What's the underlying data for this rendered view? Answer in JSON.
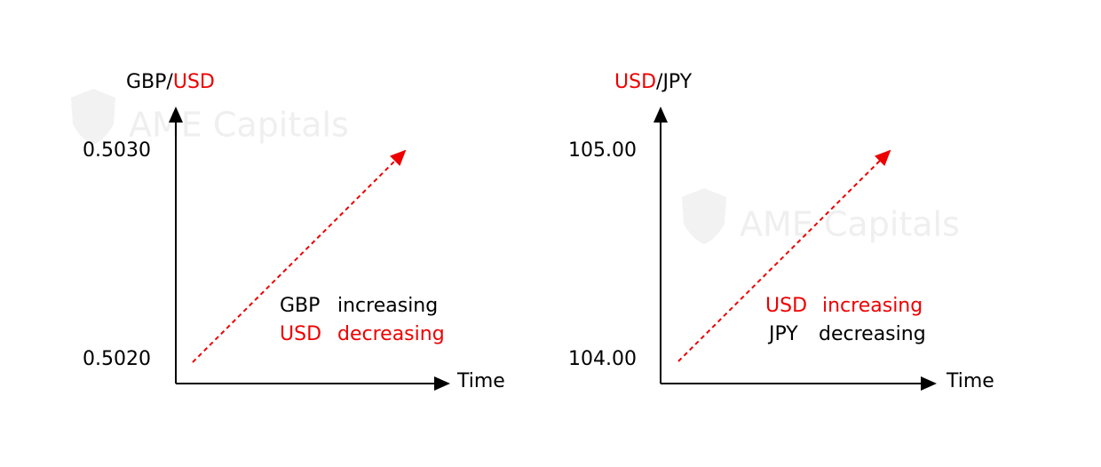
{
  "watermark": "AME Capitals",
  "panels": [
    {
      "title": [
        "GBP",
        "/",
        "USD"
      ],
      "y_labels": [
        "0.5030",
        "0.5020"
      ],
      "x_label": "Time",
      "notes": [
        [
          "GBP",
          "increasing"
        ],
        [
          "USD",
          "decreasing"
        ]
      ]
    },
    {
      "title": [
        "USD",
        "/",
        "JPY"
      ],
      "y_labels": [
        "105.00",
        "104.00"
      ],
      "x_label": "Time",
      "notes": [
        [
          "USD",
          "increasing"
        ],
        [
          "JPY",
          "decreasing"
        ]
      ]
    }
  ]
}
